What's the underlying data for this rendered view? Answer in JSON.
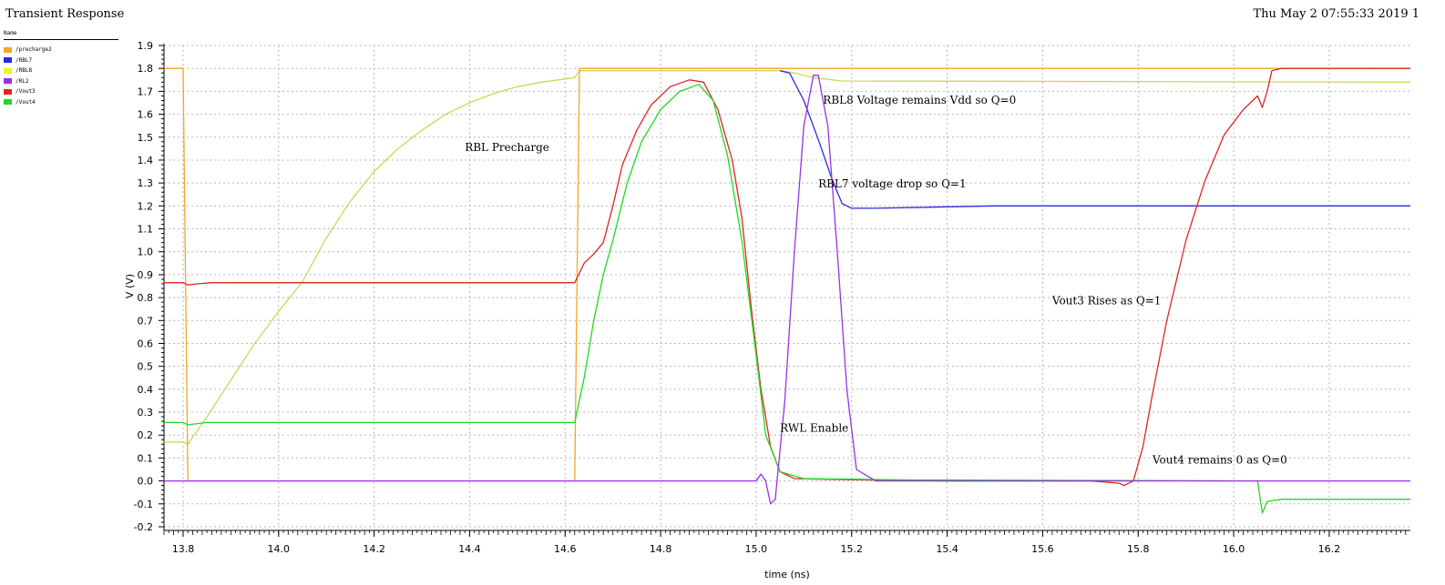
{
  "window": {
    "title": "Transient Response",
    "timestamp": "Thu May 2 07:55:33 2019  1"
  },
  "legend": {
    "header": "Name",
    "items": [
      {
        "label": "/precharge2",
        "color": "#f5a623"
      },
      {
        "label": "/RBL7",
        "color": "#2a2ae0"
      },
      {
        "label": "/RBL8",
        "color": "#f2f21c"
      },
      {
        "label": "/RL2",
        "color": "#9b30e8"
      },
      {
        "label": "/Vout3",
        "color": "#e02424"
      },
      {
        "label": "/Vout4",
        "color": "#22d822"
      }
    ]
  },
  "chart_data": {
    "type": "line",
    "title": "Transient Response",
    "xlabel": "time (ns)",
    "ylabel": "V (V)",
    "xlim": [
      13.76,
      16.37
    ],
    "ylim": [
      -0.2,
      1.9
    ],
    "xticks": [
      13.8,
      14.0,
      14.2,
      14.4,
      14.6,
      14.8,
      15.0,
      15.2,
      15.4,
      15.6,
      15.8,
      16.0,
      16.2
    ],
    "yticks": [
      -0.2,
      -0.1,
      0.0,
      0.1,
      0.2,
      0.3,
      0.4,
      0.5,
      0.6,
      0.7,
      0.8,
      0.9,
      1.0,
      1.1,
      1.2,
      1.3,
      1.4,
      1.5,
      1.6,
      1.7,
      1.8,
      1.9
    ],
    "grid": true,
    "series": [
      {
        "name": "/RBL8",
        "color": "#d4d25a",
        "points": [
          [
            13.76,
            0.17
          ],
          [
            13.8,
            0.17
          ],
          [
            13.81,
            0.16
          ],
          [
            13.85,
            0.28
          ],
          [
            13.9,
            0.44
          ],
          [
            13.95,
            0.6
          ],
          [
            14.0,
            0.74
          ],
          [
            14.05,
            0.87
          ],
          [
            14.1,
            1.06
          ],
          [
            14.15,
            1.22
          ],
          [
            14.2,
            1.35
          ],
          [
            14.25,
            1.45
          ],
          [
            14.3,
            1.53
          ],
          [
            14.35,
            1.6
          ],
          [
            14.4,
            1.65
          ],
          [
            14.45,
            1.69
          ],
          [
            14.5,
            1.72
          ],
          [
            14.55,
            1.74
          ],
          [
            14.62,
            1.76
          ],
          [
            14.63,
            1.79
          ],
          [
            15.05,
            1.79
          ],
          [
            15.08,
            1.78
          ],
          [
            15.12,
            1.76
          ],
          [
            15.18,
            1.745
          ],
          [
            16.37,
            1.74
          ]
        ]
      },
      {
        "name": "/precharge2",
        "color": "#f5a623",
        "points": [
          [
            13.76,
            1.8
          ],
          [
            13.8,
            1.8
          ],
          [
            13.81,
            0.0
          ],
          [
            14.62,
            0.0
          ],
          [
            14.63,
            1.8
          ],
          [
            16.37,
            1.8
          ]
        ]
      },
      {
        "name": "/RBL7",
        "color": "#2a2ae0",
        "points": [
          [
            15.05,
            1.79
          ],
          [
            15.07,
            1.78
          ],
          [
            15.1,
            1.66
          ],
          [
            15.13,
            1.49
          ],
          [
            15.16,
            1.31
          ],
          [
            15.18,
            1.21
          ],
          [
            15.2,
            1.19
          ],
          [
            15.25,
            1.19
          ],
          [
            15.5,
            1.2
          ],
          [
            16.37,
            1.2
          ]
        ]
      },
      {
        "name": "/Vout3",
        "color": "#e02424",
        "points": [
          [
            13.76,
            0.865
          ],
          [
            13.8,
            0.865
          ],
          [
            13.81,
            0.855
          ],
          [
            13.83,
            0.86
          ],
          [
            13.86,
            0.865
          ],
          [
            14.62,
            0.865
          ],
          [
            14.64,
            0.95
          ],
          [
            14.66,
            0.99
          ],
          [
            14.68,
            1.04
          ],
          [
            14.7,
            1.2
          ],
          [
            14.72,
            1.38
          ],
          [
            14.75,
            1.53
          ],
          [
            14.78,
            1.64
          ],
          [
            14.82,
            1.72
          ],
          [
            14.86,
            1.75
          ],
          [
            14.89,
            1.74
          ],
          [
            14.92,
            1.62
          ],
          [
            14.95,
            1.4
          ],
          [
            14.97,
            1.15
          ],
          [
            14.99,
            0.75
          ],
          [
            15.01,
            0.4
          ],
          [
            15.03,
            0.15
          ],
          [
            15.05,
            0.04
          ],
          [
            15.08,
            0.01
          ],
          [
            15.2,
            0.005
          ],
          [
            15.4,
            0.0
          ],
          [
            15.7,
            0.0
          ],
          [
            15.76,
            -0.01
          ],
          [
            15.77,
            -0.02
          ],
          [
            15.79,
            0.0
          ],
          [
            15.81,
            0.15
          ],
          [
            15.83,
            0.38
          ],
          [
            15.86,
            0.7
          ],
          [
            15.9,
            1.05
          ],
          [
            15.94,
            1.31
          ],
          [
            15.98,
            1.51
          ],
          [
            16.02,
            1.62
          ],
          [
            16.05,
            1.68
          ],
          [
            16.06,
            1.63
          ],
          [
            16.07,
            1.7
          ],
          [
            16.08,
            1.79
          ],
          [
            16.1,
            1.8
          ],
          [
            16.37,
            1.8
          ]
        ]
      },
      {
        "name": "/Vout4",
        "color": "#22d822",
        "points": [
          [
            13.76,
            0.255
          ],
          [
            13.8,
            0.255
          ],
          [
            13.81,
            0.245
          ],
          [
            13.85,
            0.255
          ],
          [
            14.62,
            0.255
          ],
          [
            14.64,
            0.45
          ],
          [
            14.66,
            0.7
          ],
          [
            14.68,
            0.9
          ],
          [
            14.7,
            1.05
          ],
          [
            14.73,
            1.3
          ],
          [
            14.76,
            1.48
          ],
          [
            14.8,
            1.62
          ],
          [
            14.84,
            1.7
          ],
          [
            14.88,
            1.73
          ],
          [
            14.91,
            1.66
          ],
          [
            14.94,
            1.42
          ],
          [
            14.97,
            1.05
          ],
          [
            15.0,
            0.55
          ],
          [
            15.02,
            0.2
          ],
          [
            15.05,
            0.04
          ],
          [
            15.1,
            0.01
          ],
          [
            15.3,
            0.005
          ],
          [
            16.05,
            0.0
          ],
          [
            16.06,
            -0.14
          ],
          [
            16.07,
            -0.09
          ],
          [
            16.1,
            -0.08
          ],
          [
            16.37,
            -0.08
          ]
        ]
      },
      {
        "name": "/RL2",
        "color": "#9b30e8",
        "points": [
          [
            13.76,
            0.0
          ],
          [
            15.0,
            0.0
          ],
          [
            15.01,
            0.03
          ],
          [
            15.02,
            0.0
          ],
          [
            15.03,
            -0.1
          ],
          [
            15.04,
            -0.08
          ],
          [
            15.06,
            0.35
          ],
          [
            15.08,
            1.0
          ],
          [
            15.1,
            1.55
          ],
          [
            15.12,
            1.77
          ],
          [
            15.13,
            1.77
          ],
          [
            15.15,
            1.55
          ],
          [
            15.17,
            1.0
          ],
          [
            15.19,
            0.4
          ],
          [
            15.21,
            0.05
          ],
          [
            15.25,
            0.0
          ],
          [
            16.37,
            0.0
          ]
        ]
      }
    ],
    "annotations": [
      {
        "text": "RBL8 Voltage remains Vdd so Q=0",
        "x": 15.14,
        "y": 1.645
      },
      {
        "text": "RBL Precharge",
        "x": 14.39,
        "y": 1.44
      },
      {
        "text": "RBL7 voltage drop so Q=1",
        "x": 15.13,
        "y": 1.28
      },
      {
        "text": "Vout3 Rises as Q=1",
        "x": 15.62,
        "y": 0.77
      },
      {
        "text": "RWL Enable",
        "x": 15.05,
        "y": 0.215
      },
      {
        "text": "Vout4 remains 0 as Q=0",
        "x": 15.83,
        "y": 0.075
      }
    ]
  }
}
